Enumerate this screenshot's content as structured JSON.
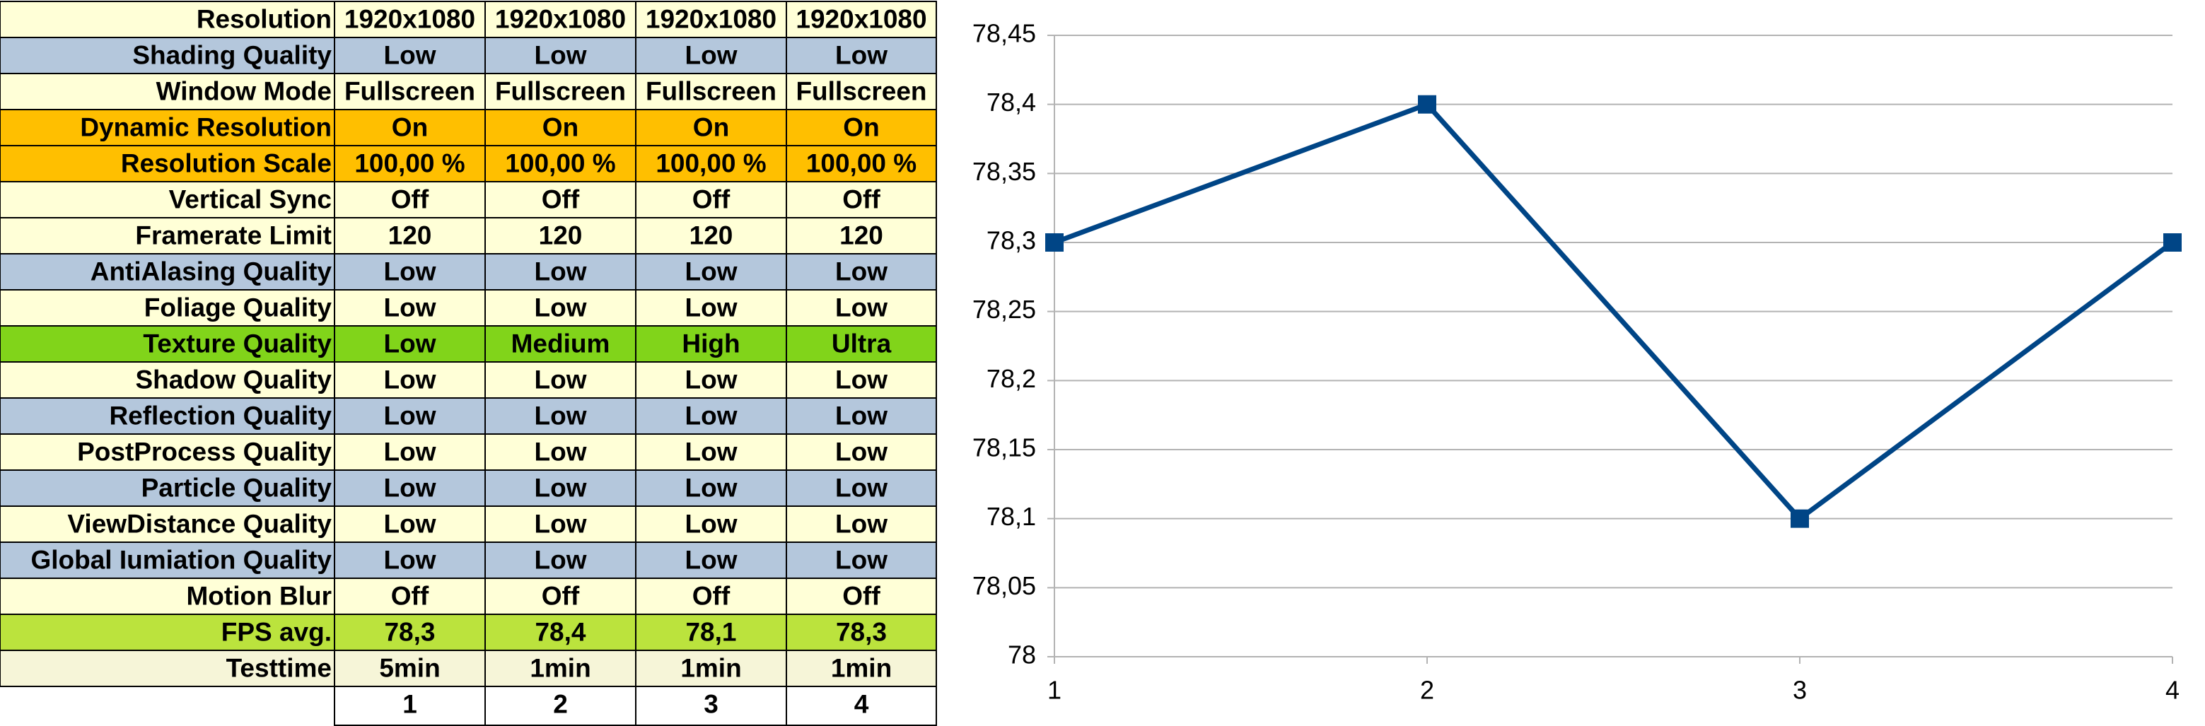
{
  "table": {
    "rows": [
      {
        "label": "Resolution",
        "fill": "#ffffd7",
        "cells": [
          "1920x1080",
          "1920x1080",
          "1920x1080",
          "1920x1080"
        ]
      },
      {
        "label": "Shading Quality",
        "fill": "#b4c7dc",
        "cells": [
          "Low",
          "Low",
          "Low",
          "Low"
        ]
      },
      {
        "label": "Window Mode",
        "fill": "#ffffd7",
        "cells": [
          "Fullscreen",
          "Fullscreen",
          "Fullscreen",
          "Fullscreen"
        ]
      },
      {
        "label": "Dynamic Resolution",
        "fill": "#ffbf00",
        "cells": [
          "On",
          "On",
          "On",
          "On"
        ]
      },
      {
        "label": "Resolution Scale",
        "fill": "#ffbf00",
        "cells": [
          "100,00 %",
          "100,00 %",
          "100,00 %",
          "100,00 %"
        ]
      },
      {
        "label": "Vertical Sync",
        "fill": "#ffffd7",
        "cells": [
          "Off",
          "Off",
          "Off",
          "Off"
        ]
      },
      {
        "label": "Framerate Limit",
        "fill": "#ffffd7",
        "cells": [
          "120",
          "120",
          "120",
          "120"
        ]
      },
      {
        "label": "AntiAlasing Quality",
        "fill": "#b4c7dc",
        "cells": [
          "Low",
          "Low",
          "Low",
          "Low"
        ]
      },
      {
        "label": "Foliage Quality",
        "fill": "#ffffd7",
        "cells": [
          "Low",
          "Low",
          "Low",
          "Low"
        ]
      },
      {
        "label": "Texture Quality",
        "fill": "#81d41a",
        "cells": [
          "Low",
          "Medium",
          "High",
          "Ultra"
        ]
      },
      {
        "label": "Shadow Quality",
        "fill": "#ffffd7",
        "cells": [
          "Low",
          "Low",
          "Low",
          "Low"
        ]
      },
      {
        "label": "Reflection Quality",
        "fill": "#b4c7dc",
        "cells": [
          "Low",
          "Low",
          "Low",
          "Low"
        ]
      },
      {
        "label": "PostProcess Quality",
        "fill": "#ffffd7",
        "cells": [
          "Low",
          "Low",
          "Low",
          "Low"
        ]
      },
      {
        "label": "Particle Quality",
        "fill": "#b4c7dc",
        "cells": [
          "Low",
          "Low",
          "Low",
          "Low"
        ]
      },
      {
        "label": "ViewDistance Quality",
        "fill": "#ffffd7",
        "cells": [
          "Low",
          "Low",
          "Low",
          "Low"
        ]
      },
      {
        "label": "Global Iumiation Quality",
        "fill": "#b4c7dc",
        "cells": [
          "Low",
          "Low",
          "Low",
          "Low"
        ]
      },
      {
        "label": "Motion Blur",
        "fill": "#ffffd7",
        "cells": [
          "Off",
          "Off",
          "Off",
          "Off"
        ]
      },
      {
        "label": "FPS avg.",
        "fill": "#bbe33d",
        "cells": [
          "78,3",
          "78,4",
          "78,1",
          "78,3"
        ]
      },
      {
        "label": "Testtime",
        "fill": "#f6f5d8",
        "cells": [
          "5min",
          "1min",
          "1min",
          "1min"
        ]
      }
    ],
    "column_numbers": [
      "1",
      "2",
      "3",
      "4"
    ]
  },
  "chart_data": {
    "type": "line",
    "x": [
      1,
      2,
      3,
      4
    ],
    "values": [
      78.3,
      78.4,
      78.1,
      78.3
    ],
    "color": "#004586",
    "xlim": [
      1,
      4
    ],
    "xticks": [
      1,
      2,
      3,
      4
    ],
    "ylim": [
      78,
      78.45
    ],
    "yticks": [
      78,
      {
        "value": 78.05,
        "label": "78,05"
      },
      {
        "value": 78.1,
        "label": "78,1"
      },
      {
        "value": 78.15,
        "label": "78,15"
      },
      {
        "value": 78.2,
        "label": "78,2"
      },
      {
        "value": 78.25,
        "label": "78,25"
      },
      {
        "value": 78.3,
        "label": "78,3"
      },
      {
        "value": 78.35,
        "label": "78,35"
      },
      {
        "value": 78.4,
        "label": "78,4"
      },
      {
        "value": 78.45,
        "label": "78,45"
      }
    ],
    "grid": true
  }
}
